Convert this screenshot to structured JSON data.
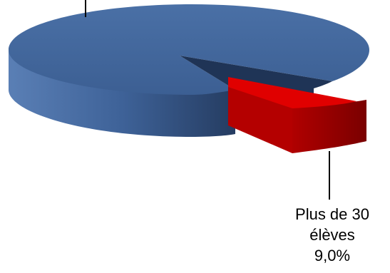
{
  "chart_data": {
    "type": "pie",
    "title": "",
    "slices": [
      {
        "label": "",
        "value": 91.0,
        "color": "#3f6398"
      },
      {
        "label": "Plus de 30 élèves",
        "label_lines": [
          "Plus de 30",
          "élèves"
        ],
        "value_label": "9,0%",
        "value": 9.0,
        "color": "#e00000",
        "exploded": true
      }
    ],
    "style": "3d"
  }
}
